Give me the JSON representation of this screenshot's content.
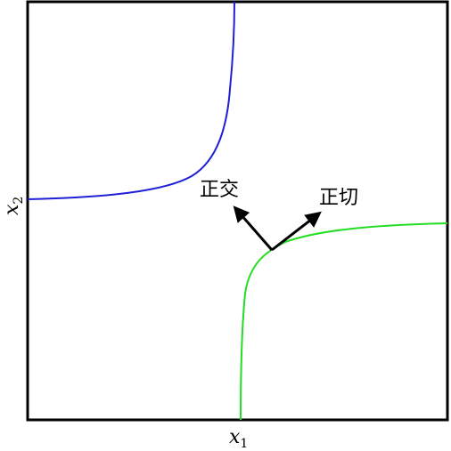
{
  "axes": {
    "x_label": "x",
    "x_subscript": "1",
    "y_label": "x",
    "y_subscript": "2"
  },
  "annotations": {
    "orthogonal": "正交",
    "tangent": "正切"
  },
  "colors": {
    "curve_upper": "#1f1fd6",
    "curve_lower": "#22dd22",
    "frame": "#000000",
    "arrows": "#000000"
  }
}
